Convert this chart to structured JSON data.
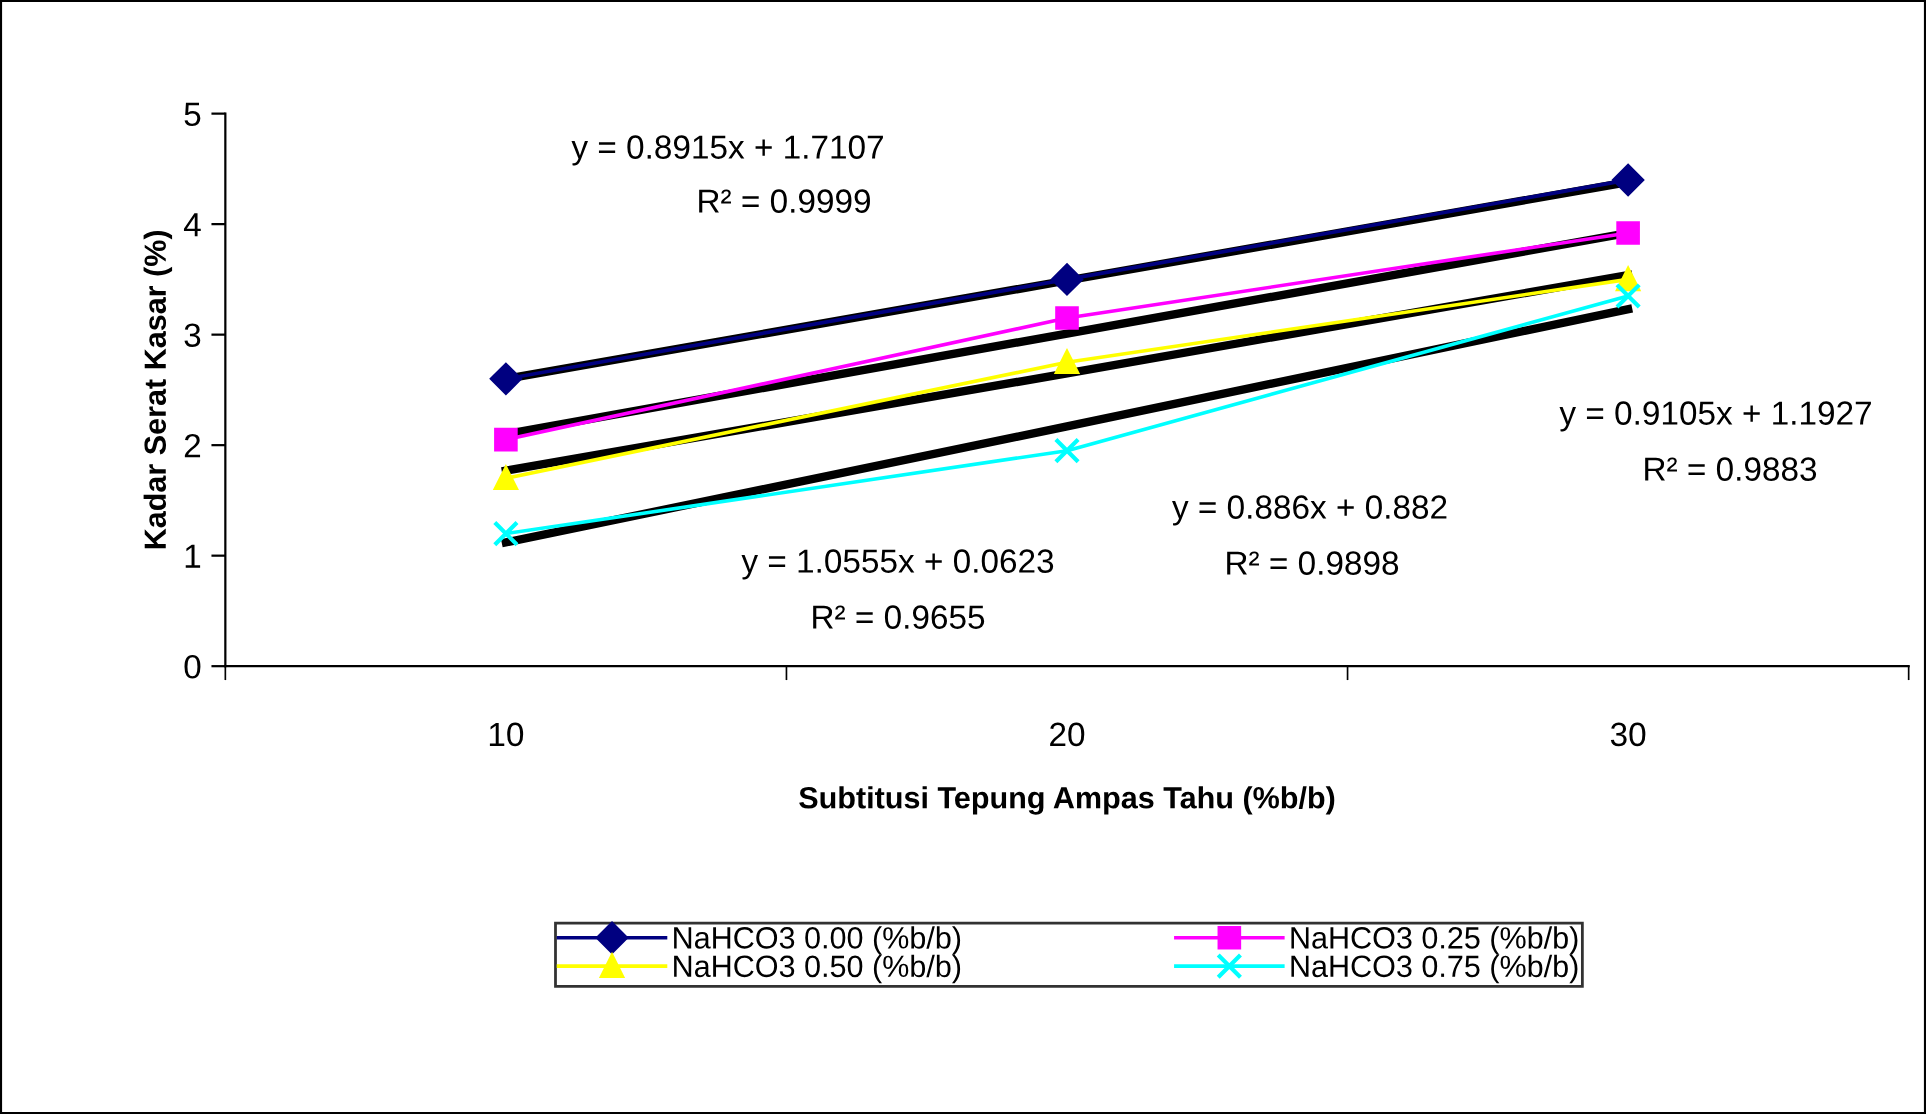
{
  "chart_data": {
    "type": "line",
    "xlabel": "Subtitusi Tepung Ampas Tahu (%b/b)",
    "ylabel": "Kadar Serat Kasar (%)",
    "categories": [
      "10",
      "20",
      "30"
    ],
    "ylim": [
      0,
      5
    ],
    "yticks": [
      0,
      1,
      2,
      3,
      4,
      5
    ],
    "grid": false,
    "legend": "bottom",
    "line_style": "solid",
    "series": [
      {
        "name": "NaHCO3 0.00 (%b/b)",
        "color": "#000080",
        "marker": "diamond",
        "values": [
          2.6,
          3.5,
          4.4
        ]
      },
      {
        "name": "NaHCO3 0.25 (%b/b)",
        "color": "#ff00ff",
        "marker": "square",
        "values": [
          2.05,
          3.15,
          3.92
        ]
      },
      {
        "name": "NaHCO3 0.50 (%b/b)",
        "color": "#ffff00",
        "marker": "triangle",
        "values": [
          1.7,
          2.75,
          3.5
        ]
      },
      {
        "name": "NaHCO3 0.75 (%b/b)",
        "color": "#00ffff",
        "marker": "cross",
        "values": [
          1.2,
          1.95,
          3.35
        ]
      },
      {
        "color": "#000000",
        "marker": "none",
        "values": [
          2.6,
          3.49,
          4.38
        ]
      },
      {
        "color": "#000000",
        "marker": "none",
        "values": [
          2.1,
          3.01,
          3.92
        ]
      },
      {
        "color": "#000000",
        "marker": "none",
        "values": [
          1.77,
          2.65,
          3.54
        ]
      },
      {
        "color": "#000000",
        "marker": "none",
        "values": [
          1.12,
          2.17,
          3.23
        ]
      }
    ],
    "annotations": [
      "y = 0.8915x + 1.7107",
      "R² = 0.9999",
      "y = 1.0555x + 0.0623",
      "R² = 0.9655",
      "y = 0.886x + 0.882",
      "R² = 0.9898",
      "y = 0.9105x + 1.1927",
      "R² = 0.9883"
    ]
  }
}
